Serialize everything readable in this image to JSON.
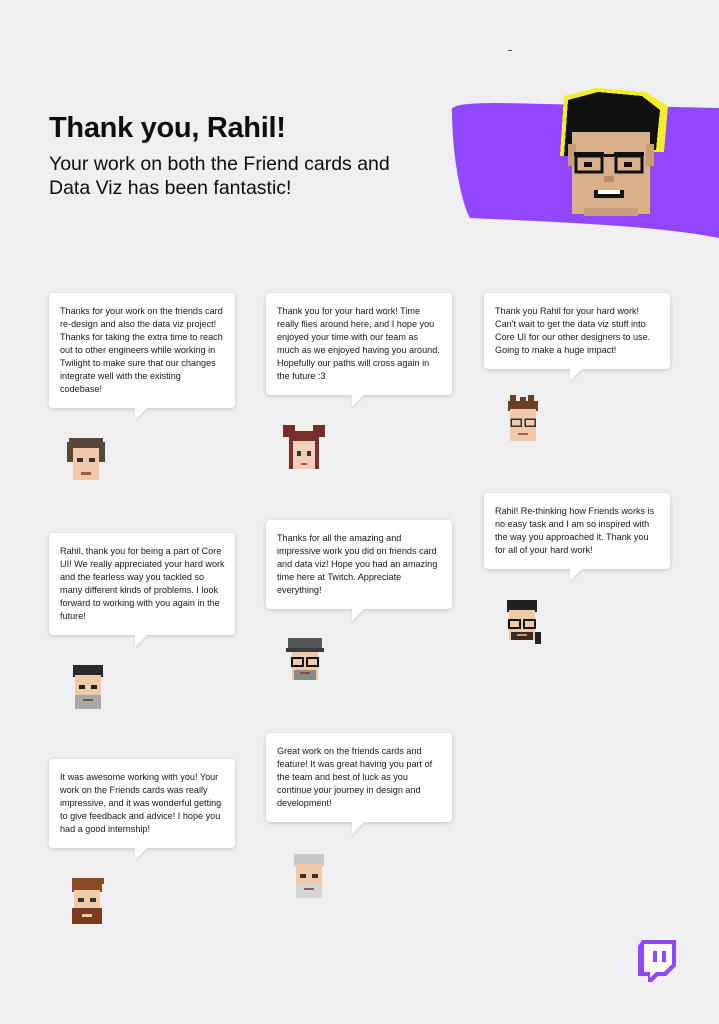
{
  "header": {
    "title": "Thank you, Rahil!",
    "subtitle": "Your work on both the Friend cards and Data Viz has been fantastic!"
  },
  "colors": {
    "brand_purple": "#9147ff",
    "accent_yellow": "#f7f100",
    "background": "#efeef1",
    "card": "#ffffff",
    "text": "#18181b"
  },
  "icons": {
    "hero": "pixel-avatar-icon",
    "logo": "twitch-logo-icon"
  },
  "messages": [
    {
      "text": "Thanks for your work on the friends card re-design and also the data viz project! Thanks for taking the extra time to reach out to other engineers while working in Twilight to make sure that our changes integrate well with the existing codebase!"
    },
    {
      "text": "Thank you for your hard work! Time really flies around here, and I hope you enjoyed your time with our team as much as we enjoyed having you around. Hopefully our paths will cross again in the future :3"
    },
    {
      "text": "Thank you Rahil for your hard work! Can't wait to get the data viz stuff into Core UI for our other designers to use. Going to make a huge impact!"
    },
    {
      "text": "Rahil! Re-thinking how Friends works is no easy task and I am so inspired with the way you approached it. Thank you for all of your hard work!"
    },
    {
      "text": "Rahil, thank you for being a part of Core UI! We really appreciated your hard work and the fearless way you tackled so many different kinds of problems. I look forward to working with you again in the future!"
    },
    {
      "text": "Thanks for all the amazing and impressive work you did on friends card and data viz! Hope you had an amazing time here at Twitch. Appreciate everything!"
    },
    {
      "text": "Great work on the friends cards and feature! It was great having you part of the team and best of luck as you continue your journey in design and development!"
    },
    {
      "text": "It was awesome working with you! Your work on the Friends cards was really impressive, and it was wonderful getting to give feedback and advice! I hope you had a good internship!"
    }
  ]
}
